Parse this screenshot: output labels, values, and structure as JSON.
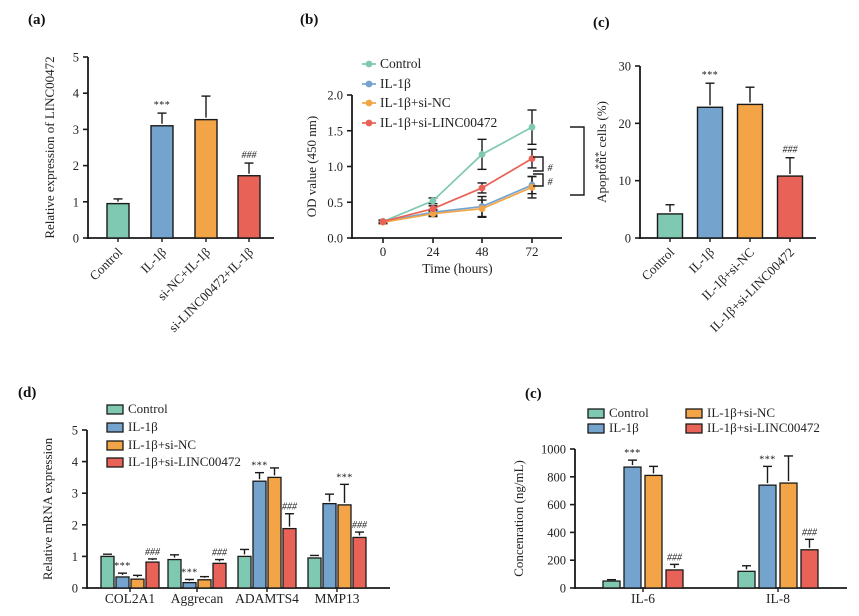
{
  "colors": {
    "teal": "#7FC8B1",
    "blue": "#74A3CE",
    "orange": "#F3A446",
    "red": "#E96257",
    "axis": "#1A1A1A",
    "text": "#222222"
  },
  "chart_data": [
    {
      "id": "panel-a",
      "panel_label": "(a)",
      "type": "bar",
      "ylabel": "Relative expression of LINC00472",
      "categories": [
        "Control",
        "IL-1β",
        "si-NC+IL-1β",
        "si-LINC00472+IL-1β"
      ],
      "values": [
        0.95,
        3.1,
        3.27,
        1.72
      ],
      "errors": [
        0.13,
        0.35,
        0.65,
        0.35
      ],
      "annotations": [
        "",
        "***",
        "",
        "###"
      ],
      "bar_colors": [
        "teal",
        "blue",
        "orange",
        "red"
      ],
      "ylim": [
        0,
        5
      ],
      "yticks": [
        "0",
        "1",
        "2",
        "3",
        "4",
        "5"
      ]
    },
    {
      "id": "panel-b",
      "panel_label": "(b)",
      "type": "line",
      "xlabel": "Time (hours)",
      "ylabel": "OD value (450 nm)",
      "x": [
        "0",
        "24",
        "48",
        "72"
      ],
      "series": [
        {
          "name": "Control",
          "color": "teal",
          "values": [
            0.23,
            0.52,
            1.17,
            1.55
          ],
          "errors": [
            0.02,
            0.04,
            0.21,
            0.24
          ]
        },
        {
          "name": "IL-1β",
          "color": "blue",
          "values": [
            0.23,
            0.36,
            0.44,
            0.74
          ],
          "errors": [
            0.02,
            0.04,
            0.14,
            0.12
          ]
        },
        {
          "name": "IL-1β+si-NC",
          "color": "orange",
          "values": [
            0.22,
            0.34,
            0.41,
            0.71
          ],
          "errors": [
            0.02,
            0.04,
            0.12,
            0.15
          ]
        },
        {
          "name": "IL-1β+si-LINC00472",
          "color": "red",
          "values": [
            0.23,
            0.41,
            0.7,
            1.11
          ],
          "errors": [
            0.02,
            0.04,
            0.07,
            0.13
          ]
        }
      ],
      "ylim": [
        0,
        2
      ],
      "yticks": [
        "0.0",
        "0.5",
        "1.0",
        "1.5",
        "2.0"
      ],
      "legend_position": "top-left",
      "significance": {
        "bracket_small": [
          "#",
          "#"
        ],
        "bracket_large": "***"
      }
    },
    {
      "id": "panel-c",
      "panel_label": "(c)",
      "type": "bar",
      "ylabel": "Apoptotic cells (%)",
      "categories": [
        "Control",
        "IL-1β",
        "IL-1β+si-NC",
        "IL-1β+si-LINC00472"
      ],
      "values": [
        4.2,
        22.8,
        23.3,
        10.8
      ],
      "errors": [
        1.6,
        4.2,
        3.0,
        3.2
      ],
      "annotations": [
        "",
        "***",
        "",
        "###"
      ],
      "bar_colors": [
        "teal",
        "blue",
        "orange",
        "red"
      ],
      "ylim": [
        0,
        30
      ],
      "yticks": [
        "0",
        "10",
        "20",
        "30"
      ]
    },
    {
      "id": "panel-d",
      "panel_label": "(d)",
      "type": "grouped_bar",
      "ylabel": "Relative mRNA expression",
      "categories": [
        "COL2A1",
        "Aggrecan",
        "ADAMTS4",
        "MMP13"
      ],
      "series": [
        {
          "name": "Control",
          "color": "teal",
          "values": [
            1.0,
            0.9,
            1.0,
            0.95
          ],
          "errors": [
            0.07,
            0.15,
            0.22,
            0.08
          ],
          "annotations": [
            "",
            "",
            "",
            ""
          ]
        },
        {
          "name": "IL-1β",
          "color": "blue",
          "values": [
            0.35,
            0.17,
            3.38,
            2.67
          ],
          "errors": [
            0.12,
            0.1,
            0.27,
            0.3
          ],
          "annotations": [
            "***",
            "***",
            "***",
            ""
          ]
        },
        {
          "name": "IL-1β+si-NC",
          "color": "orange",
          "values": [
            0.28,
            0.26,
            3.5,
            2.63
          ],
          "errors": [
            0.12,
            0.1,
            0.3,
            0.65
          ],
          "annotations": [
            "",
            "",
            "",
            "***"
          ]
        },
        {
          "name": "IL-1β+si-LINC00472",
          "color": "red",
          "values": [
            0.82,
            0.78,
            1.88,
            1.6
          ],
          "errors": [
            0.1,
            0.12,
            0.47,
            0.17
          ],
          "annotations": [
            "###",
            "###",
            "###",
            "###"
          ]
        }
      ],
      "ylim": [
        0,
        5
      ],
      "yticks": [
        "0",
        "1",
        "2",
        "3",
        "4",
        "5"
      ],
      "legend_position": "top-left"
    },
    {
      "id": "panel-e",
      "panel_label": "(c)",
      "type": "grouped_bar",
      "ylabel": "Concenration (ng/mL)",
      "categories": [
        "IL-6",
        "IL-8"
      ],
      "series": [
        {
          "name": "Control",
          "color": "teal",
          "values": [
            50,
            120
          ],
          "errors": [
            10,
            40
          ],
          "annotations": [
            "",
            ""
          ]
        },
        {
          "name": "IL-1β",
          "color": "blue",
          "values": [
            870,
            740
          ],
          "errors": [
            50,
            135
          ],
          "annotations": [
            "***",
            "***"
          ]
        },
        {
          "name": "IL-1β+si-NC",
          "color": "orange",
          "values": [
            810,
            755
          ],
          "errors": [
            65,
            195
          ],
          "annotations": [
            "",
            ""
          ]
        },
        {
          "name": "IL-1β+si-LINC00472",
          "color": "red",
          "values": [
            130,
            275
          ],
          "errors": [
            40,
            75
          ],
          "annotations": [
            "###",
            "###"
          ]
        }
      ],
      "ylim": [
        0,
        1000
      ],
      "yticks": [
        "0",
        "200",
        "400",
        "600",
        "800",
        "1000"
      ],
      "legend_position": "top-two-columns"
    }
  ]
}
